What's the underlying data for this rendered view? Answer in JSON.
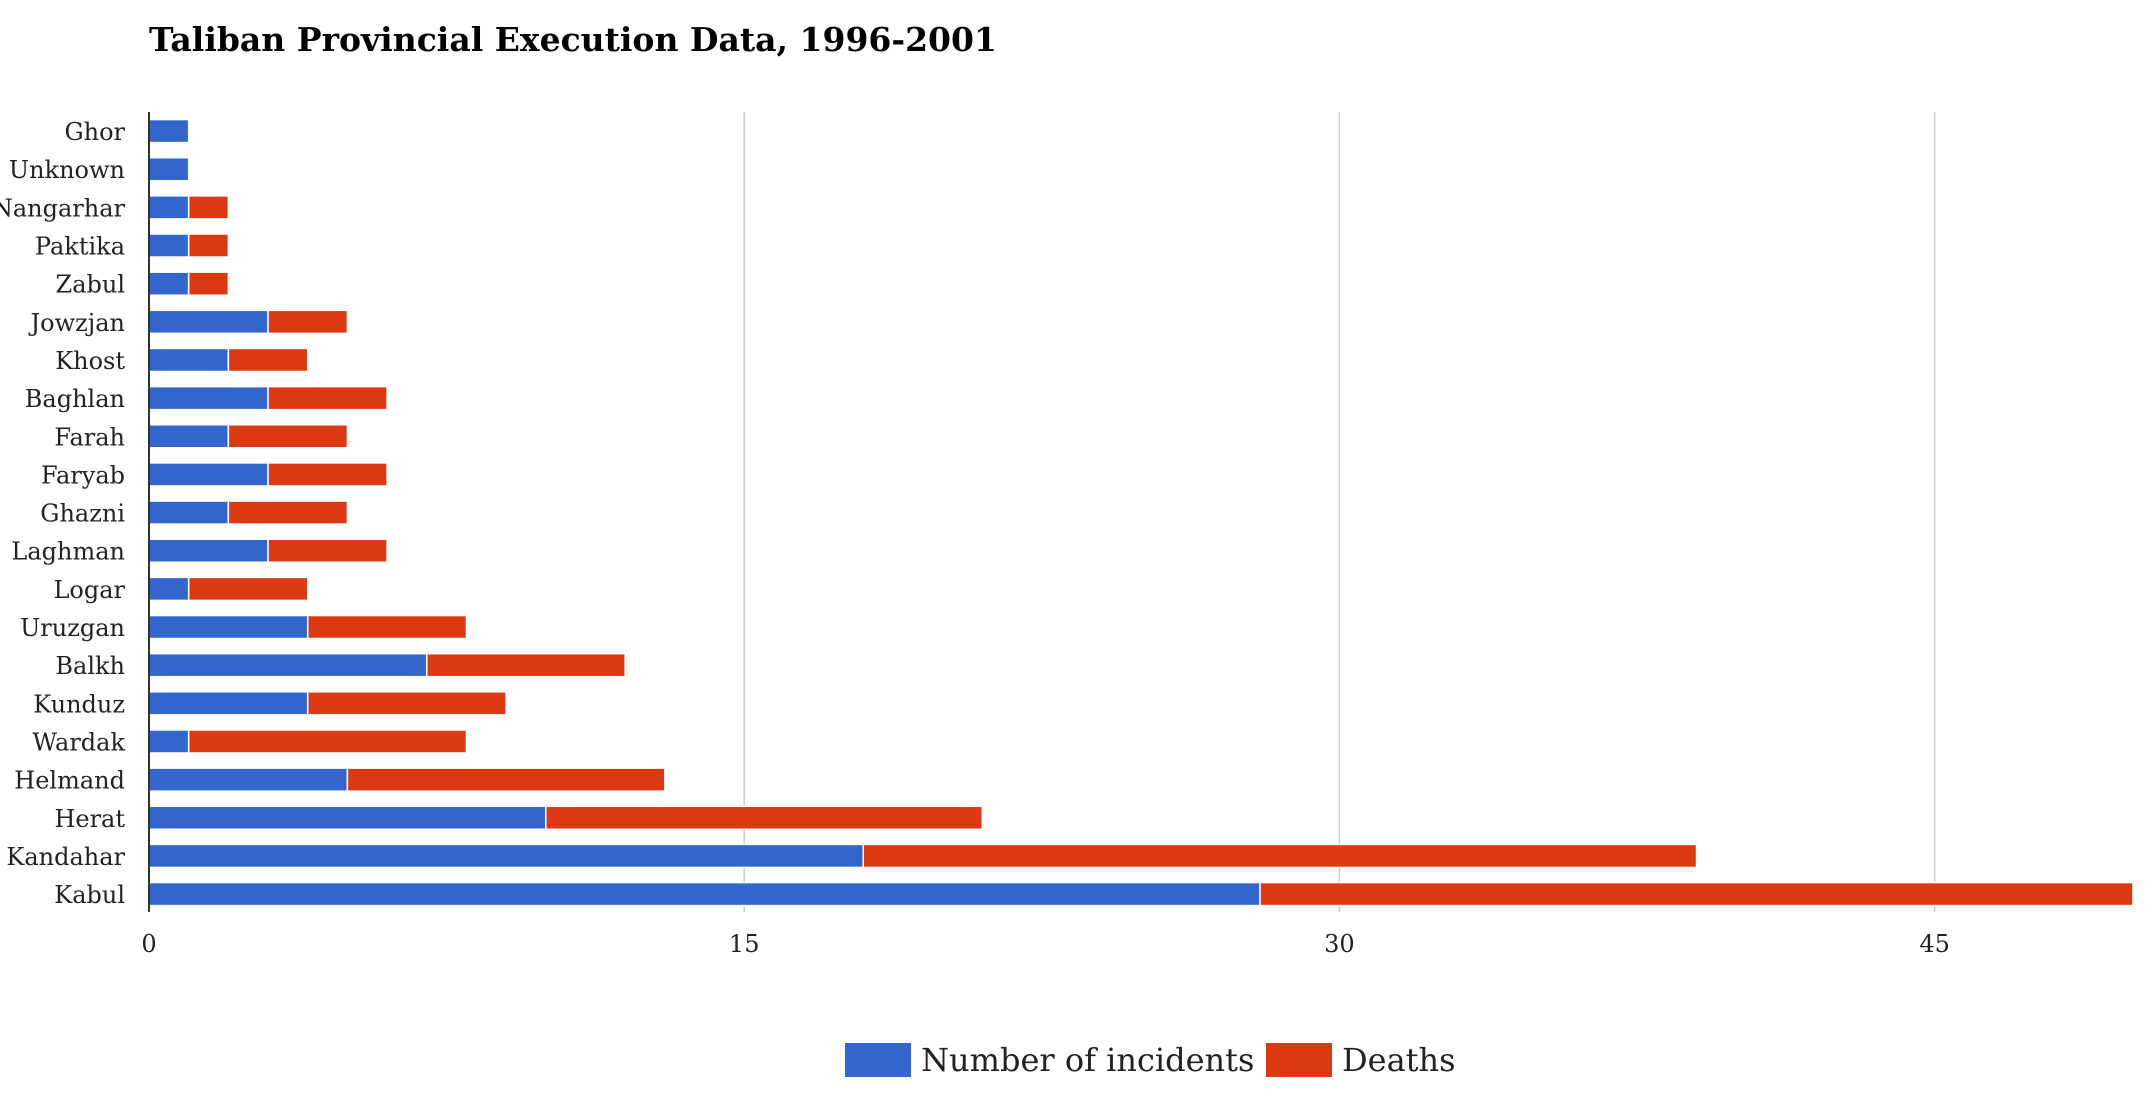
{
  "chart_data": {
    "type": "bar",
    "orientation": "horizontal",
    "stacked": true,
    "title": "Taliban Provincial Execution Data, 1996-2001",
    "xlabel": "",
    "ylabel": "",
    "xlim": [
      0,
      50
    ],
    "x_ticks": [
      0,
      15,
      30,
      45
    ],
    "grid": true,
    "legend_position": "bottom",
    "categories": [
      "Ghor",
      "Unknown",
      "Nangarhar",
      "Paktika",
      "Zabul",
      "Jowzjan",
      "Khost",
      "Baghlan",
      "Farah",
      "Faryab",
      "Ghazni",
      "Laghman",
      "Logar",
      "Uruzgan",
      "Balkh",
      "Kunduz",
      "Wardak",
      "Helmand",
      "Herat",
      "Kandahar",
      "Kabul"
    ],
    "series": [
      {
        "name": "Number of incidents",
        "color": "#3366cc",
        "values": [
          1,
          1,
          1,
          1,
          1,
          3,
          2,
          3,
          2,
          3,
          2,
          3,
          1,
          4,
          7,
          4,
          1,
          5,
          10,
          18,
          28
        ]
      },
      {
        "name": "Deaths",
        "color": "#dc3912",
        "values": [
          0,
          0,
          1,
          1,
          1,
          2,
          2,
          3,
          3,
          3,
          3,
          3,
          3,
          4,
          5,
          5,
          7,
          8,
          11,
          21,
          22
        ]
      }
    ]
  }
}
